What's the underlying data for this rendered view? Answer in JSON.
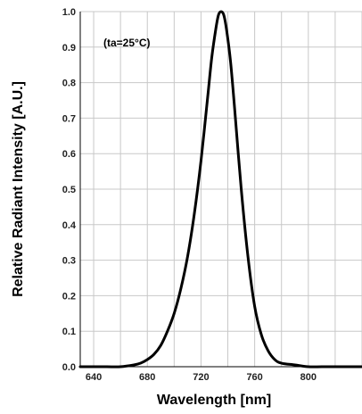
{
  "chart_data": {
    "type": "line",
    "title": "",
    "xlabel": "Wavelength [nm]",
    "ylabel": "Relative Radiant Intensity [A.U.]",
    "annotation": "(ta=25°C)",
    "xlim": [
      630,
      840
    ],
    "ylim": [
      0,
      1.0
    ],
    "x_ticks": [
      640,
      680,
      720,
      760,
      800
    ],
    "x_tick_labels": [
      "640",
      "680",
      "720",
      "760",
      "800"
    ],
    "y_ticks": [
      0,
      0.1,
      0.2,
      0.3,
      0.4,
      0.5,
      0.6,
      0.7,
      0.8,
      0.9,
      1.0
    ],
    "y_tick_labels": [
      "0.0",
      "0.1",
      "0.2",
      "0.3",
      "0.4",
      "0.5",
      "0.6",
      "0.7",
      "0.8",
      "0.9",
      "1.0"
    ],
    "grid": true,
    "series": [
      {
        "x": [
          630,
          640,
          650,
          660,
          670,
          675,
          680,
          685,
          690,
          695,
          700,
          705,
          710,
          715,
          720,
          725,
          728,
          731,
          733,
          735,
          737,
          739,
          742,
          745,
          750,
          755,
          760,
          765,
          770,
          775,
          780,
          790,
          800,
          810,
          820,
          830,
          840
        ],
        "y": [
          0.0,
          0.0,
          0.0,
          0.0,
          0.005,
          0.01,
          0.02,
          0.035,
          0.06,
          0.1,
          0.15,
          0.22,
          0.31,
          0.43,
          0.58,
          0.76,
          0.87,
          0.95,
          0.99,
          1.0,
          0.99,
          0.95,
          0.86,
          0.73,
          0.5,
          0.31,
          0.17,
          0.09,
          0.045,
          0.02,
          0.01,
          0.005,
          0.0,
          0.0,
          0.0,
          0.0,
          0.0
        ],
        "color": "#000000"
      }
    ]
  }
}
